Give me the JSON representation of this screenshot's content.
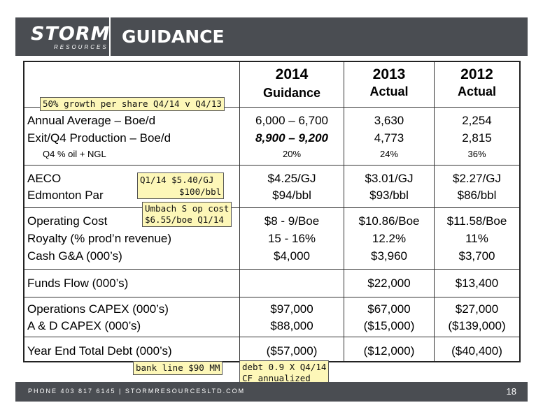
{
  "header": {
    "logo_main": "STORM",
    "logo_sub": "RESOURCES",
    "title": "GUIDANCE"
  },
  "table": {
    "columns": [
      {
        "year": "2014",
        "sub": "Guidance"
      },
      {
        "year": "2013",
        "sub": "Actual"
      },
      {
        "year": "2012",
        "sub": "Actual"
      }
    ],
    "rows": [
      {
        "label": "Annual Average – Boe/d",
        "v2014": "6,000 – 6,700",
        "v2013": "3,630",
        "v2012": "2,254"
      },
      {
        "label": "Exit/Q4 Production – Boe/d",
        "v2014": "8,900 – 9,200",
        "v2013": "4,773",
        "v2012": "2,815"
      },
      {
        "label": "Q4 % oil + NGL",
        "v2014": "20%",
        "v2013": "24%",
        "v2012": "36%"
      },
      {
        "label": "AECO",
        "v2014": "$4.25/GJ",
        "v2013": "$3.01/GJ",
        "v2012": "$2.27/GJ"
      },
      {
        "label": "Edmonton Par",
        "v2014": "$94/bbl",
        "v2013": "$93/bbl",
        "v2012": "$86/bbl"
      },
      {
        "label": "Operating Cost",
        "v2014": "$8 - 9/Boe",
        "v2013": "$10.86/Boe",
        "v2012": "$11.58/Boe"
      },
      {
        "label": "Royalty (% prod’n revenue)",
        "v2014": "15 - 16%",
        "v2013": "12.2%",
        "v2012": "11%"
      },
      {
        "label": "Cash G&A (000’s)",
        "v2014": "$4,000",
        "v2013": "$3,960",
        "v2012": "$3,700"
      },
      {
        "label": "Funds Flow (000’s)",
        "v2014": "",
        "v2013": "$22,000",
        "v2012": "$13,400"
      },
      {
        "label": "Operations CAPEX (000’s)",
        "v2014": "$97,000",
        "v2013": "$67,000",
        "v2012": "$27,000"
      },
      {
        "label": "A & D CAPEX (000’s)",
        "v2014": "$88,000",
        "v2013": "($15,000)",
        "v2012": "($139,000)"
      },
      {
        "label": "Year End Total Debt (000’s)",
        "v2014": "($57,000)",
        "v2013": "($12,000)",
        "v2012": "($40,400)"
      }
    ]
  },
  "notes": {
    "growth": "50% growth per share Q4/14 v Q4/13",
    "q1_line1": "Q1/14  $5.40/GJ",
    "q1_line2": "$100/bbl",
    "umbach_line1": "Umbach S op cost",
    "umbach_line2": "$6.55/boe Q1/14",
    "bank_line": "bank line $90 MM",
    "debt_line1": "debt 0.9 X Q4/14",
    "debt_line2": "CF annualized"
  },
  "footer": {
    "contact": "PHONE 403 817 6145  |  STORMRESOURCESLTD.COM",
    "page": "18"
  }
}
